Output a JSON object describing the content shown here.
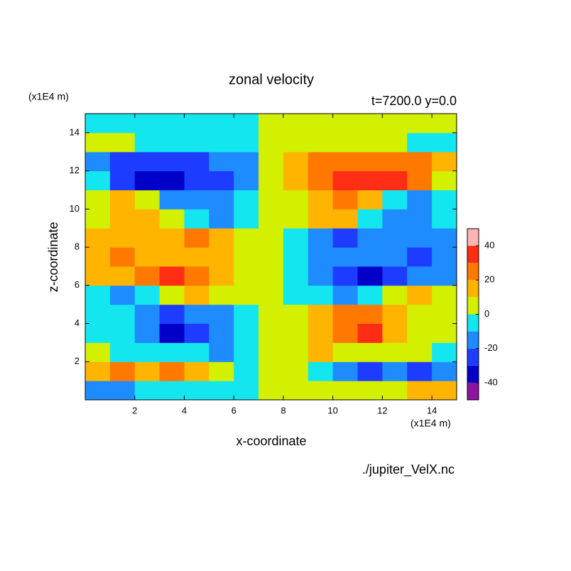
{
  "chart_data": {
    "type": "contour",
    "title": "zonal velocity",
    "subtitle": "t=7200.0 y=0.0",
    "x_label": "x-coordinate",
    "y_label": "z-coordinate",
    "x_unit": "(x1E4 m)",
    "y_unit": "(x1E4 m)",
    "source": "./jupiter_VelX.nc",
    "xlim": [
      0,
      15
    ],
    "ylim": [
      0,
      15
    ],
    "xticks": [
      2,
      4,
      6,
      8,
      10,
      12,
      14
    ],
    "yticks": [
      2,
      4,
      6,
      8,
      10,
      12,
      14
    ],
    "x": [
      0.5,
      1.5,
      2.5,
      3.5,
      4.5,
      5.5,
      6.5,
      7.5,
      8.5,
      9.5,
      10.5,
      11.5,
      12.5,
      13.5,
      14.5
    ],
    "y": [
      0.5,
      1.5,
      2.5,
      3.5,
      4.5,
      5.5,
      6.5,
      7.5,
      8.5,
      9.5,
      10.5,
      11.5,
      12.5,
      13.5,
      14.5
    ],
    "z": [
      [
        -15,
        -15,
        -5,
        -5,
        -5,
        -5,
        -5,
        3,
        5,
        5,
        5,
        5,
        5,
        15,
        15
      ],
      [
        15,
        25,
        15,
        25,
        15,
        5,
        -5,
        3,
        5,
        -5,
        -15,
        -25,
        -15,
        -25,
        -15
      ],
      [
        5,
        -5,
        -5,
        -5,
        -5,
        -15,
        -5,
        3,
        5,
        15,
        5,
        5,
        5,
        5,
        -5
      ],
      [
        -5,
        -5,
        -15,
        -35,
        -25,
        -15,
        -5,
        3,
        5,
        15,
        25,
        35,
        15,
        5,
        5
      ],
      [
        -5,
        -5,
        -15,
        -25,
        -20,
        -15,
        -5,
        3,
        5,
        15,
        20,
        25,
        15,
        5,
        5
      ],
      [
        -5,
        -15,
        -5,
        5,
        15,
        5,
        5,
        3,
        -5,
        -5,
        -15,
        -5,
        5,
        15,
        5
      ],
      [
        15,
        15,
        25,
        35,
        25,
        15,
        5,
        3,
        -5,
        -15,
        -25,
        -35,
        -25,
        -15,
        -15
      ],
      [
        15,
        25,
        15,
        15,
        15,
        15,
        5,
        3,
        -5,
        -15,
        -15,
        -15,
        -15,
        -25,
        -15
      ],
      [
        15,
        15,
        15,
        15,
        25,
        15,
        5,
        3,
        -5,
        -15,
        -25,
        -15,
        -15,
        -15,
        -15
      ],
      [
        5,
        15,
        15,
        5,
        -10,
        -15,
        -5,
        3,
        5,
        15,
        10,
        -5,
        -15,
        -15,
        -5
      ],
      [
        5,
        15,
        5,
        -15,
        -20,
        -15,
        -5,
        3,
        5,
        15,
        20,
        15,
        -5,
        -15,
        -5
      ],
      [
        -5,
        -25,
        -35,
        -35,
        -30,
        -25,
        -15,
        3,
        15,
        25,
        30,
        35,
        35,
        25,
        5
      ],
      [
        -15,
        -25,
        -25,
        -25,
        -25,
        -20,
        -15,
        3,
        15,
        20,
        25,
        25,
        25,
        25,
        15
      ],
      [
        3,
        3,
        -5,
        -5,
        -5,
        -5,
        -5,
        3,
        5,
        5,
        5,
        5,
        5,
        -3,
        -3
      ],
      [
        -5,
        -5,
        -5,
        -5,
        -5,
        -5,
        -5,
        3,
        5,
        5,
        5,
        5,
        5,
        5,
        5
      ]
    ],
    "levels": [
      -50,
      -40,
      -30,
      -20,
      -10,
      0,
      10,
      20,
      30,
      40,
      50
    ],
    "colors": [
      "#8c14a0",
      "#0000c8",
      "#1e3cff",
      "#1e8cff",
      "#14e6f0",
      "#d2f000",
      "#ffb400",
      "#ff7800",
      "#ff2d14",
      "#ffb4b4"
    ],
    "colorbar_ticks": [
      -40,
      -20,
      0,
      20,
      40
    ]
  }
}
